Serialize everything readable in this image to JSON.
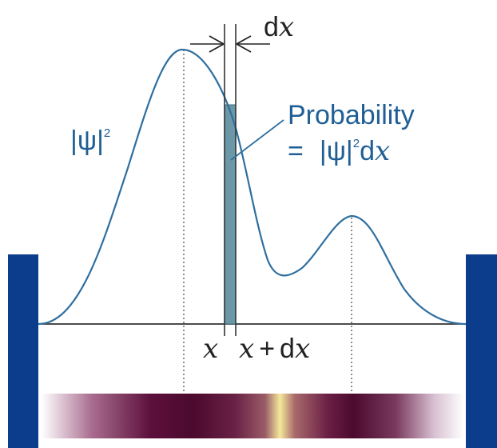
{
  "diagram": {
    "labels": {
      "psi_squared": "|ψ|",
      "psi_squared_exp": "2",
      "dx_top": "d",
      "dx_top_var": "x",
      "probability": "Probability",
      "prob_eq": "=",
      "prob_psi": "|ψ|",
      "prob_psi_exp": "2",
      "prob_dx_d": "d",
      "prob_dx_x": "x",
      "x_label": "x",
      "x_plus_dx_x": "x",
      "x_plus_dx_plus": "+",
      "x_plus_dx_d": "d",
      "x_plus_dx_var": "x"
    },
    "colors": {
      "curve": "#2f6f9f",
      "walls": "#0c3c8c",
      "strip_fill": "#6b98a8",
      "text_blue": "#1f5f96",
      "axis": "#333333",
      "strip_dark": "#4b0a2e",
      "strip_bright": "#f4e99a"
    }
  }
}
